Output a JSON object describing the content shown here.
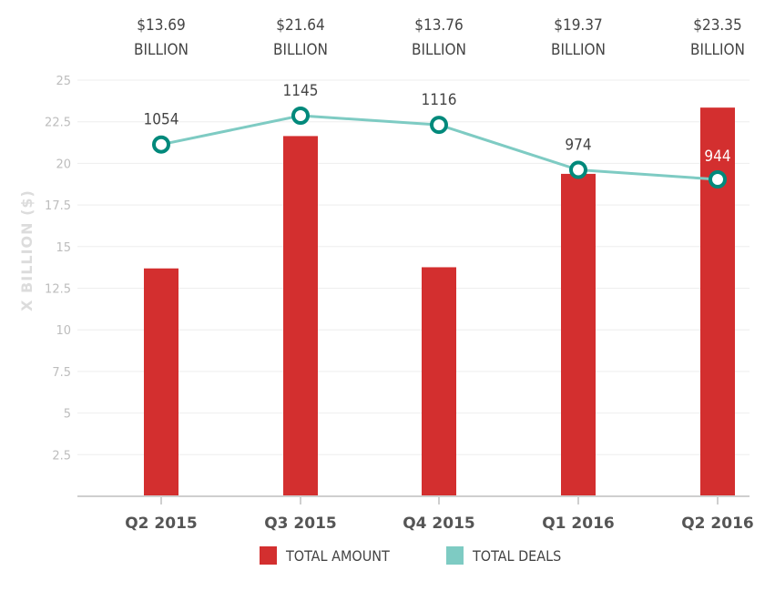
{
  "chart_data": {
    "type": "bar",
    "categories": [
      "Q2 2015",
      "Q3 2015",
      "Q4 2015",
      "Q1 2016",
      "Q2 2016"
    ],
    "ylabel": "X BILLION ($)",
    "ylim": [
      0,
      25
    ],
    "yticks": [
      "2.5",
      "5",
      "7.5",
      "10",
      "12.5",
      "15",
      "17.5",
      "20",
      "22.5",
      "25"
    ],
    "series": [
      {
        "name": "TOTAL AMOUNT",
        "type": "bar",
        "color": "#d32f2f",
        "values": [
          13.69,
          21.64,
          13.76,
          19.37,
          23.35
        ],
        "labels_line1": [
          "$13.69",
          "$21.64",
          "$13.76",
          "$19.37",
          "$23.35"
        ],
        "labels_line2": [
          "BILLION",
          "BILLION",
          "BILLION",
          "BILLION",
          "BILLION"
        ]
      },
      {
        "name": "TOTAL DEALS",
        "type": "line",
        "color": "#7ecbc3",
        "marker_color": "#00897b",
        "values": [
          1054,
          1145,
          1116,
          974,
          944
        ],
        "labels": [
          "1054",
          "1145",
          "1116",
          "974",
          "944"
        ]
      }
    ],
    "grid": true
  }
}
